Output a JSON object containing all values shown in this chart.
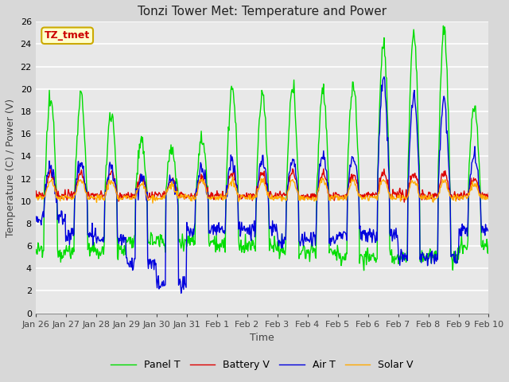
{
  "title": "Tonzi Tower Met: Temperature and Power",
  "xlabel": "Time",
  "ylabel": "Temperature (C) / Power (V)",
  "annotation": "TZ_tmet",
  "ylim": [
    0,
    26
  ],
  "yticks": [
    0,
    2,
    4,
    6,
    8,
    10,
    12,
    14,
    16,
    18,
    20,
    22,
    24,
    26
  ],
  "xtick_labels": [
    "Jan 26",
    "Jan 27",
    "Jan 28",
    "Jan 29",
    "Jan 30",
    "Jan 31",
    "Feb 1",
    "Feb 2",
    "Feb 3",
    "Feb 4",
    "Feb 5",
    "Feb 6",
    "Feb 7",
    "Feb 8",
    "Feb 9",
    "Feb 10"
  ],
  "legend_labels": [
    "Panel T",
    "Battery V",
    "Air T",
    "Solar V"
  ],
  "line_colors": [
    "#00dd00",
    "#dd0000",
    "#0000dd",
    "#ffaa00"
  ],
  "bg_color": "#d8d8d8",
  "plot_bg_color": "#e8e8e8",
  "annotation_bg": "#ffffcc",
  "annotation_fg": "#cc0000",
  "annotation_border": "#ccaa00",
  "title_fontsize": 11,
  "label_fontsize": 9,
  "tick_fontsize": 8,
  "legend_fontsize": 9
}
